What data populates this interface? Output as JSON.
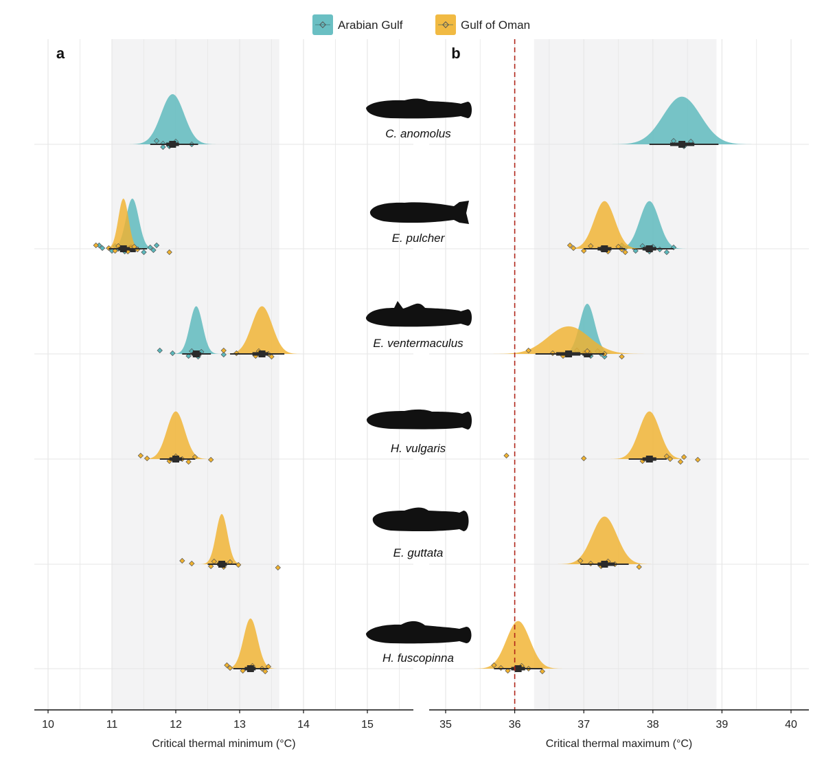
{
  "legend": {
    "entries": [
      {
        "name": "Arabian Gulf",
        "color": "#5ab8bc"
      },
      {
        "name": "Gulf of Oman",
        "color": "#f0b22f"
      }
    ]
  },
  "colors": {
    "arabian_gulf": "#5ab8bc",
    "gulf_of_oman": "#f0b22f",
    "reference_line": "#b02418",
    "shaded_band": "#f3f3f4",
    "grid": "#e6e6e6",
    "summary": "#2b2b2b"
  },
  "chart_data": [
    {
      "type": "density",
      "panel": "a",
      "xlabel": "Critical thermal minimum (°C)",
      "xlim": [
        9.7,
        15.7
      ],
      "xticks": [
        10,
        11,
        12,
        13,
        14,
        15
      ],
      "grid": true,
      "shaded_range": [
        11.0,
        13.62
      ],
      "species": [
        {
          "name": "C. anomolus",
          "series": [
            {
              "group": "Arabian Gulf",
              "mean": 11.95,
              "sd": 0.18,
              "peak": 1.0,
              "interval_95": [
                11.6,
                12.35
              ],
              "interval_66": [
                11.85,
                12.05
              ],
              "points": [
                11.7,
                11.8,
                11.9,
                12.0,
                12.25,
                11.8
              ]
            }
          ]
        },
        {
          "name": "E. pulcher",
          "series": [
            {
              "group": "Arabian Gulf",
              "mean": 11.32,
              "sd": 0.1,
              "peak": 1.0,
              "interval_95": [
                11.05,
                11.55
              ],
              "interval_66": [
                11.22,
                11.42
              ],
              "points": [
                10.8,
                10.85,
                11.0,
                11.05,
                11.1,
                11.2,
                11.3,
                11.35,
                11.5,
                11.6,
                11.65,
                11.7
              ]
            },
            {
              "group": "Gulf of Oman",
              "mean": 11.18,
              "sd": 0.08,
              "peak": 1.0,
              "interval_95": [
                10.95,
                11.45
              ],
              "interval_66": [
                11.1,
                11.28
              ],
              "points": [
                10.75,
                10.95,
                11.05,
                11.1,
                11.15,
                11.25,
                11.35,
                11.4,
                11.9
              ]
            }
          ]
        },
        {
          "name": "E. ventermaculus",
          "series": [
            {
              "group": "Arabian Gulf",
              "mean": 12.32,
              "sd": 0.1,
              "peak": 0.95,
              "interval_95": [
                12.1,
                12.55
              ],
              "interval_66": [
                12.25,
                12.4
              ],
              "points": [
                11.75,
                11.95,
                12.2,
                12.25,
                12.3,
                12.35,
                12.4,
                12.75
              ]
            },
            {
              "group": "Gulf of Oman",
              "mean": 13.35,
              "sd": 0.16,
              "peak": 0.95,
              "interval_95": [
                12.85,
                13.7
              ],
              "interval_66": [
                13.2,
                13.45
              ],
              "points": [
                12.75,
                12.95,
                13.25,
                13.3,
                13.45,
                13.5
              ]
            }
          ]
        },
        {
          "name": "H. vulgaris",
          "series": [
            {
              "group": "Gulf of Oman",
              "mean": 12.0,
              "sd": 0.14,
              "peak": 0.95,
              "interval_95": [
                11.75,
                12.3
              ],
              "interval_66": [
                11.9,
                12.1
              ],
              "points": [
                11.45,
                11.55,
                11.9,
                12.0,
                12.1,
                12.2,
                12.3,
                12.55
              ]
            }
          ]
        },
        {
          "name": "E. guttata",
          "series": [
            {
              "group": "Gulf of Oman",
              "mean": 12.72,
              "sd": 0.09,
              "peak": 1.0,
              "interval_95": [
                12.5,
                12.95
              ],
              "interval_66": [
                12.65,
                12.8
              ],
              "points": [
                12.1,
                12.25,
                12.55,
                12.6,
                12.7,
                12.75,
                12.85,
                12.98,
                13.6
              ]
            }
          ]
        },
        {
          "name": "H. fuscopinna",
          "series": [
            {
              "group": "Gulf of Oman",
              "mean": 13.17,
              "sd": 0.11,
              "peak": 1.0,
              "interval_95": [
                12.9,
                13.45
              ],
              "interval_66": [
                13.08,
                13.25
              ],
              "points": [
                12.8,
                12.85,
                13.05,
                13.2,
                13.35,
                13.4,
                13.45
              ]
            }
          ]
        }
      ]
    },
    {
      "type": "density",
      "panel": "b",
      "xlabel": "Critical thermal maximum (°C)",
      "xlim": [
        34.75,
        40.25
      ],
      "xticks": [
        35,
        36,
        37,
        38,
        39,
        40
      ],
      "grid": true,
      "shaded_range": [
        36.28,
        38.92
      ],
      "reference_line": 36.0,
      "species": [
        {
          "name": "C. anomolus",
          "series": [
            {
              "group": "Arabian Gulf",
              "mean": 38.42,
              "sd": 0.27,
              "peak": 0.95,
              "interval_95": [
                37.95,
                38.95
              ],
              "interval_66": [
                38.25,
                38.6
              ],
              "points": [
                38.3,
                38.4,
                38.45,
                38.55
              ]
            }
          ]
        },
        {
          "name": "E. pulcher",
          "series": [
            {
              "group": "Arabian Gulf",
              "mean": 37.95,
              "sd": 0.14,
              "peak": 0.95,
              "interval_95": [
                37.7,
                38.3
              ],
              "interval_66": [
                37.85,
                38.05
              ],
              "points": [
                37.55,
                37.6,
                37.75,
                37.85,
                37.9,
                37.95,
                38.0,
                38.1,
                38.2,
                38.3
              ]
            },
            {
              "group": "Gulf of Oman",
              "mean": 37.3,
              "sd": 0.15,
              "peak": 0.95,
              "interval_95": [
                37.0,
                37.6
              ],
              "interval_66": [
                37.2,
                37.4
              ],
              "points": [
                36.8,
                36.85,
                37.0,
                37.1,
                37.25,
                37.35,
                37.5,
                37.55,
                37.6
              ]
            }
          ]
        },
        {
          "name": "E. ventermaculus",
          "series": [
            {
              "group": "Arabian Gulf",
              "mean": 37.05,
              "sd": 0.11,
              "peak": 1.0,
              "interval_95": [
                36.8,
                37.3
              ],
              "interval_66": [
                36.98,
                37.12
              ],
              "points": [
                36.9,
                37.0,
                37.1,
                37.2,
                37.25,
                37.3
              ]
            },
            {
              "group": "Gulf of Oman",
              "mean": 36.78,
              "sd": 0.3,
              "peak": 0.55,
              "interval_95": [
                36.3,
                37.3
              ],
              "interval_66": [
                36.6,
                36.95
              ],
              "points": [
                36.2,
                36.55,
                36.7,
                37.05,
                37.3,
                37.55
              ]
            }
          ]
        },
        {
          "name": "H. vulgaris",
          "series": [
            {
              "group": "Gulf of Oman",
              "mean": 37.95,
              "sd": 0.15,
              "peak": 0.95,
              "interval_95": [
                37.65,
                38.2
              ],
              "interval_66": [
                37.85,
                38.05
              ],
              "points": [
                35.88,
                37.0,
                37.85,
                38.2,
                38.25,
                38.4,
                38.45,
                38.65
              ]
            }
          ]
        },
        {
          "name": "E. guttata",
          "series": [
            {
              "group": "Gulf of Oman",
              "mean": 37.3,
              "sd": 0.18,
              "peak": 0.95,
              "interval_95": [
                36.95,
                37.65
              ],
              "interval_66": [
                37.2,
                37.45
              ],
              "points": [
                36.95,
                37.1,
                37.25,
                37.35,
                37.45,
                37.8
              ]
            }
          ]
        },
        {
          "name": "H. fuscopinna",
          "series": [
            {
              "group": "Gulf of Oman",
              "mean": 36.05,
              "sd": 0.17,
              "peak": 0.95,
              "interval_95": [
                35.7,
                36.4
              ],
              "interval_66": [
                35.95,
                36.15
              ],
              "points": [
                35.7,
                35.8,
                35.9,
                36.1,
                36.2,
                36.4
              ]
            }
          ]
        }
      ]
    }
  ]
}
